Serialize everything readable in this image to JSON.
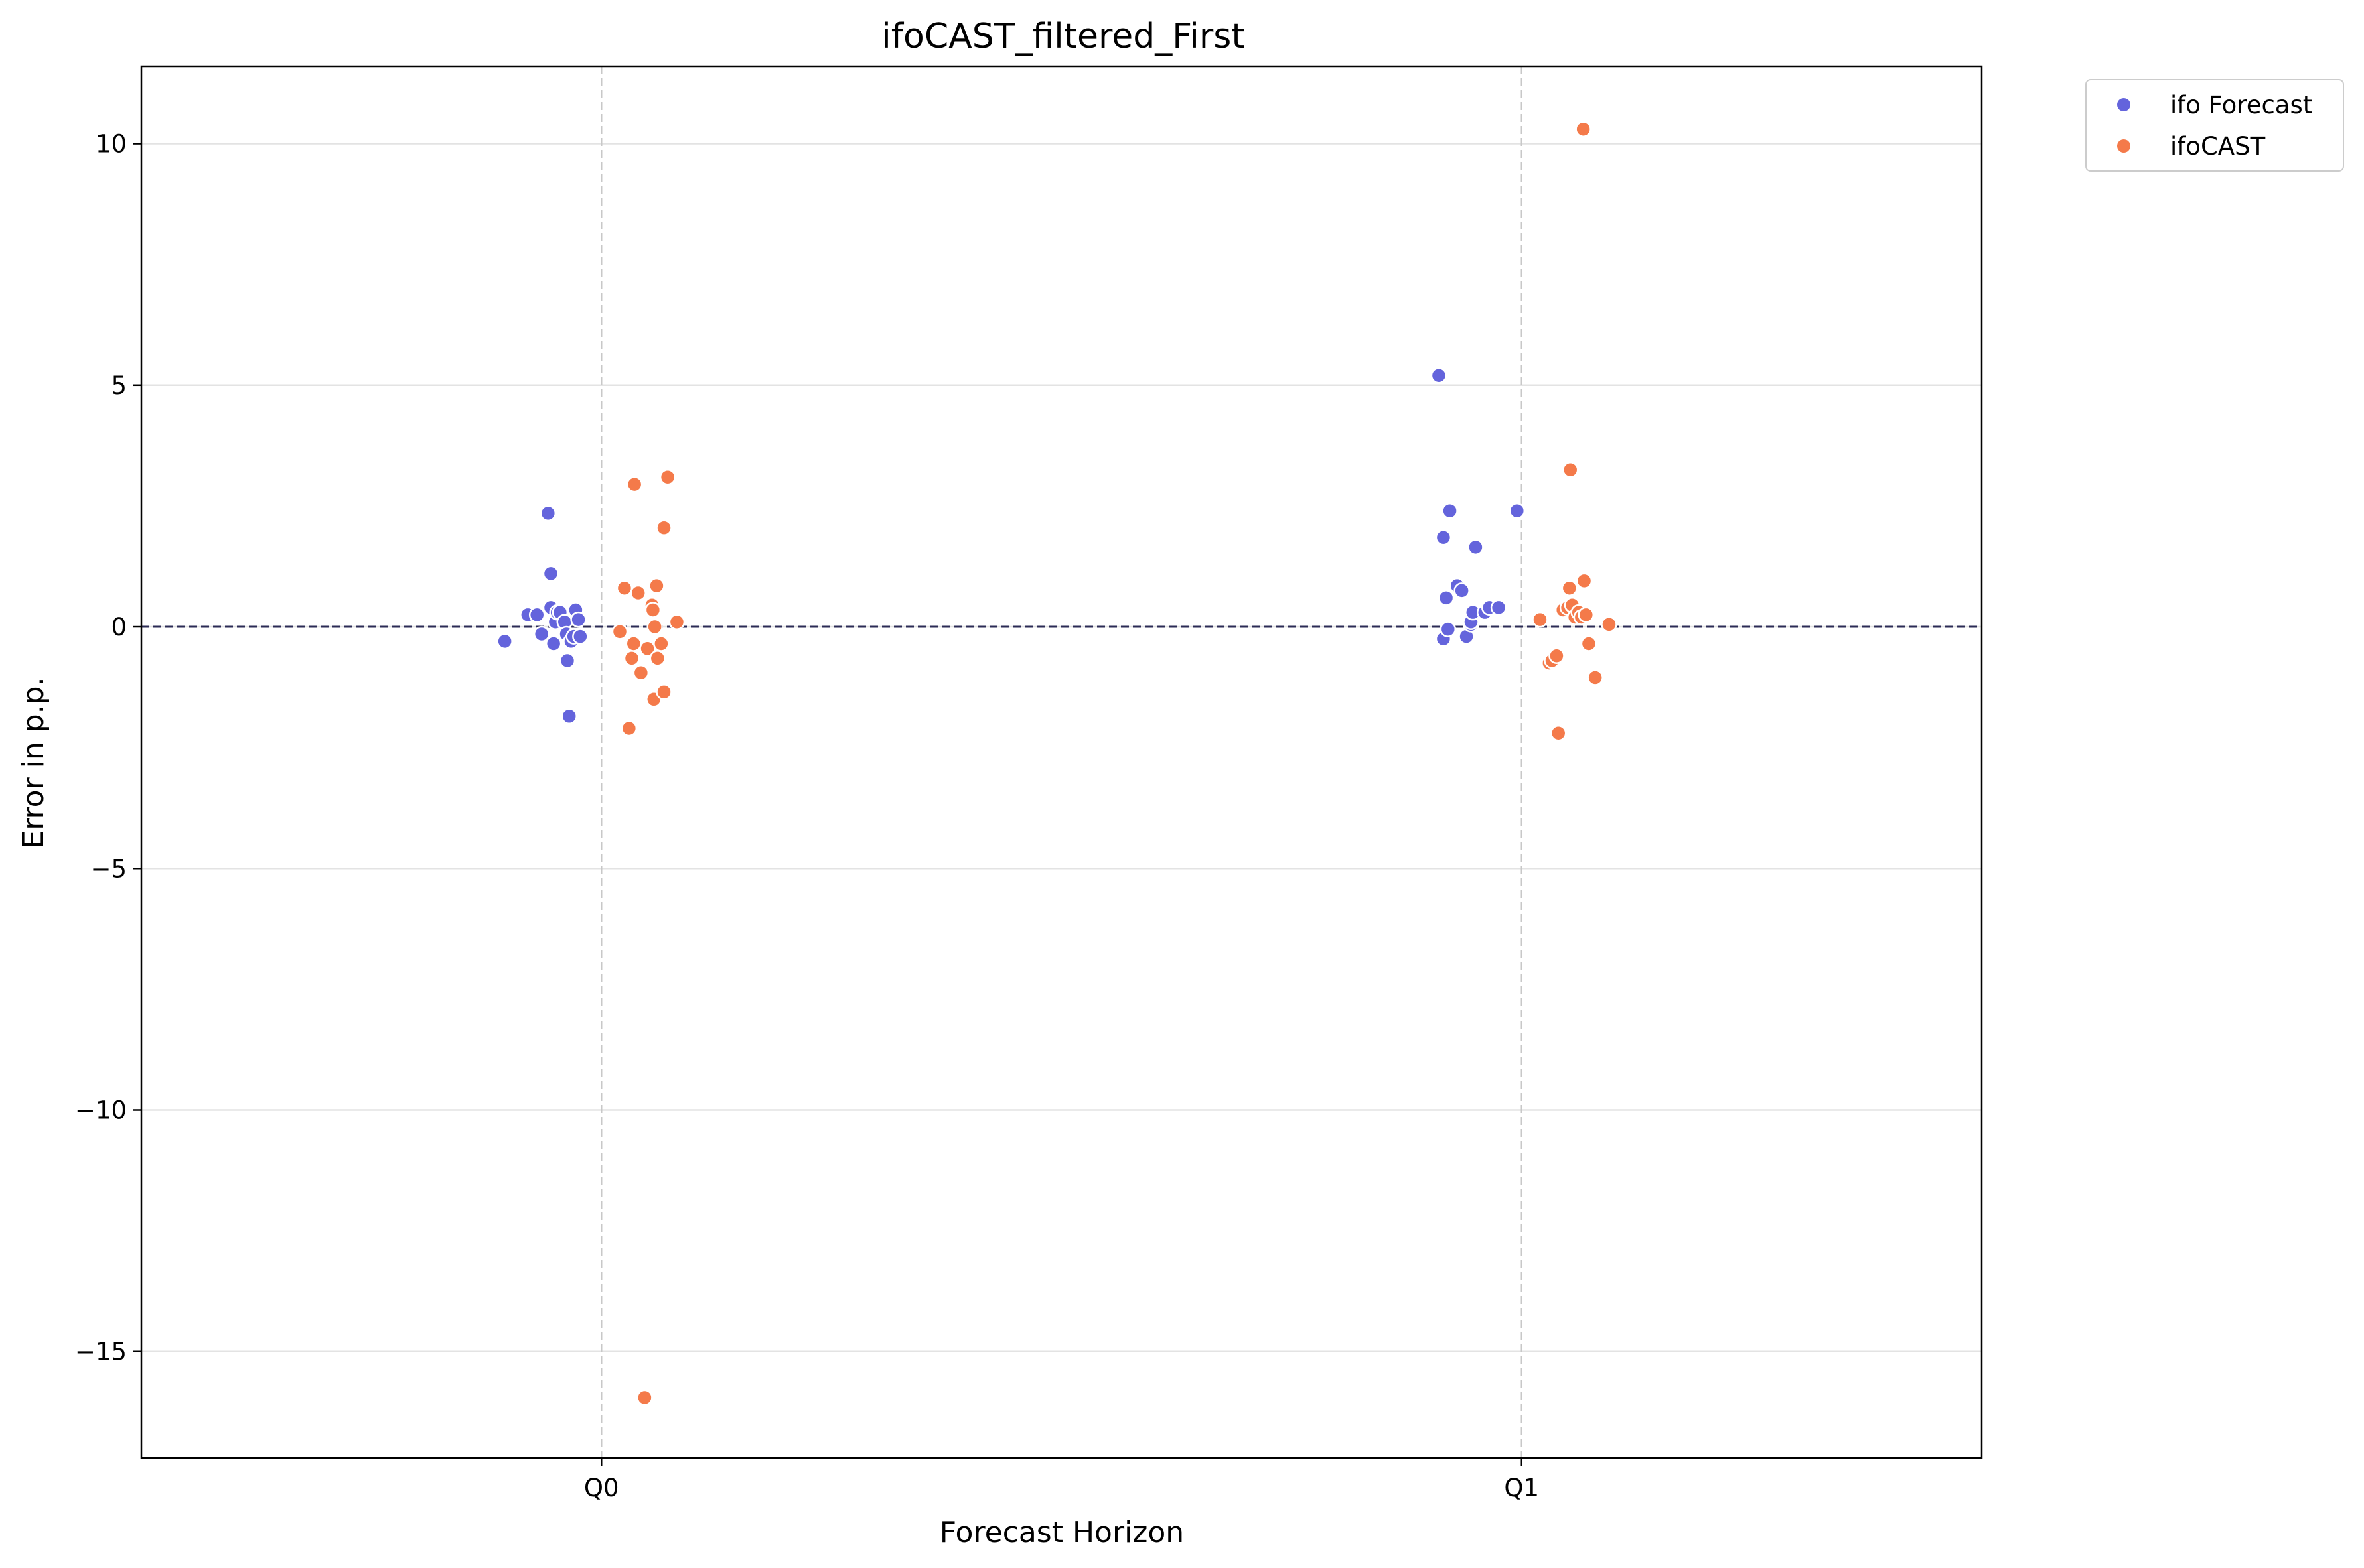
{
  "chart_data": {
    "type": "scatter",
    "title": "ifoCAST_filtered_First",
    "xlabel": "Forecast Horizon",
    "ylabel": "Error in p.p.",
    "categories": [
      "Q0",
      "Q1"
    ],
    "xlim": [
      -0.5,
      1.5
    ],
    "ylim": [
      -17.2,
      11.6
    ],
    "yticks": [
      10,
      5,
      0,
      -5,
      -10,
      -15
    ],
    "ytick_labels": [
      "10",
      "5",
      "0",
      "−5",
      "−10",
      "−15"
    ],
    "grid": "horizontal",
    "reference_line": 0,
    "legend_position": "outside-top-right",
    "series": [
      {
        "name": "ifo Forecast",
        "color": "#6464dc",
        "points": [
          {
            "x": -0.105,
            "y": -0.3
          },
          {
            "x": -0.08,
            "y": 0.25
          },
          {
            "x": -0.07,
            "y": 0.25
          },
          {
            "x": -0.065,
            "y": -0.15
          },
          {
            "x": -0.058,
            "y": 2.35
          },
          {
            "x": -0.055,
            "y": 1.1
          },
          {
            "x": -0.055,
            "y": 0.4
          },
          {
            "x": -0.052,
            "y": -0.35
          },
          {
            "x": -0.05,
            "y": 0.1
          },
          {
            "x": -0.048,
            "y": 0.3
          },
          {
            "x": -0.045,
            "y": 0.3
          },
          {
            "x": -0.04,
            "y": 0.1
          },
          {
            "x": -0.038,
            "y": -0.15
          },
          {
            "x": -0.037,
            "y": -0.7
          },
          {
            "x": -0.035,
            "y": -1.85
          },
          {
            "x": -0.033,
            "y": -0.3
          },
          {
            "x": -0.03,
            "y": -0.2
          },
          {
            "x": -0.028,
            "y": 0.35
          },
          {
            "x": -0.025,
            "y": 0.15
          },
          {
            "x": -0.023,
            "y": -0.2
          },
          {
            "x": 0.91,
            "y": 5.2
          },
          {
            "x": 0.915,
            "y": 1.85
          },
          {
            "x": 0.915,
            "y": -0.25
          },
          {
            "x": 0.918,
            "y": 0.6
          },
          {
            "x": 0.92,
            "y": -0.05
          },
          {
            "x": 0.922,
            "y": 2.4
          },
          {
            "x": 0.93,
            "y": 0.85
          },
          {
            "x": 0.935,
            "y": 0.75
          },
          {
            "x": 0.94,
            "y": -0.2
          },
          {
            "x": 0.945,
            "y": 0.05
          },
          {
            "x": 0.945,
            "y": 0.1
          },
          {
            "x": 0.947,
            "y": 0.3
          },
          {
            "x": 0.95,
            "y": 1.65
          },
          {
            "x": 0.96,
            "y": 0.3
          },
          {
            "x": 0.965,
            "y": 0.4
          },
          {
            "x": 0.975,
            "y": 0.4
          },
          {
            "x": 0.995,
            "y": 2.4
          }
        ]
      },
      {
        "name": "ifoCAST",
        "color": "#f47a4a",
        "points": [
          {
            "x": 0.02,
            "y": -0.1
          },
          {
            "x": 0.025,
            "y": 0.8
          },
          {
            "x": 0.03,
            "y": -2.1
          },
          {
            "x": 0.033,
            "y": -0.65
          },
          {
            "x": 0.035,
            "y": -0.35
          },
          {
            "x": 0.036,
            "y": 2.95
          },
          {
            "x": 0.04,
            "y": 0.7
          },
          {
            "x": 0.043,
            "y": -0.95
          },
          {
            "x": 0.047,
            "y": -15.95
          },
          {
            "x": 0.05,
            "y": -0.45
          },
          {
            "x": 0.055,
            "y": 0.45
          },
          {
            "x": 0.056,
            "y": 0.35
          },
          {
            "x": 0.057,
            "y": -1.5
          },
          {
            "x": 0.058,
            "y": 0.0
          },
          {
            "x": 0.06,
            "y": 0.85
          },
          {
            "x": 0.061,
            "y": -0.65
          },
          {
            "x": 0.065,
            "y": -0.35
          },
          {
            "x": 0.068,
            "y": -1.35
          },
          {
            "x": 0.068,
            "y": 2.05
          },
          {
            "x": 0.072,
            "y": 3.1
          },
          {
            "x": 0.082,
            "y": 0.1
          },
          {
            "x": 1.02,
            "y": 0.15
          },
          {
            "x": 1.03,
            "y": -0.75
          },
          {
            "x": 1.033,
            "y": -0.7
          },
          {
            "x": 1.038,
            "y": -0.6
          },
          {
            "x": 1.04,
            "y": -2.2
          },
          {
            "x": 1.045,
            "y": 0.35
          },
          {
            "x": 1.05,
            "y": 0.4
          },
          {
            "x": 1.052,
            "y": 0.8
          },
          {
            "x": 1.053,
            "y": 3.25
          },
          {
            "x": 1.055,
            "y": 0.45
          },
          {
            "x": 1.058,
            "y": 0.2
          },
          {
            "x": 1.062,
            "y": 0.3
          },
          {
            "x": 1.065,
            "y": 0.2
          },
          {
            "x": 1.067,
            "y": 10.3
          },
          {
            "x": 1.068,
            "y": 0.95
          },
          {
            "x": 1.07,
            "y": 0.25
          },
          {
            "x": 1.073,
            "y": -0.35
          },
          {
            "x": 1.08,
            "y": -1.05
          },
          {
            "x": 1.095,
            "y": 0.05
          }
        ]
      }
    ]
  }
}
